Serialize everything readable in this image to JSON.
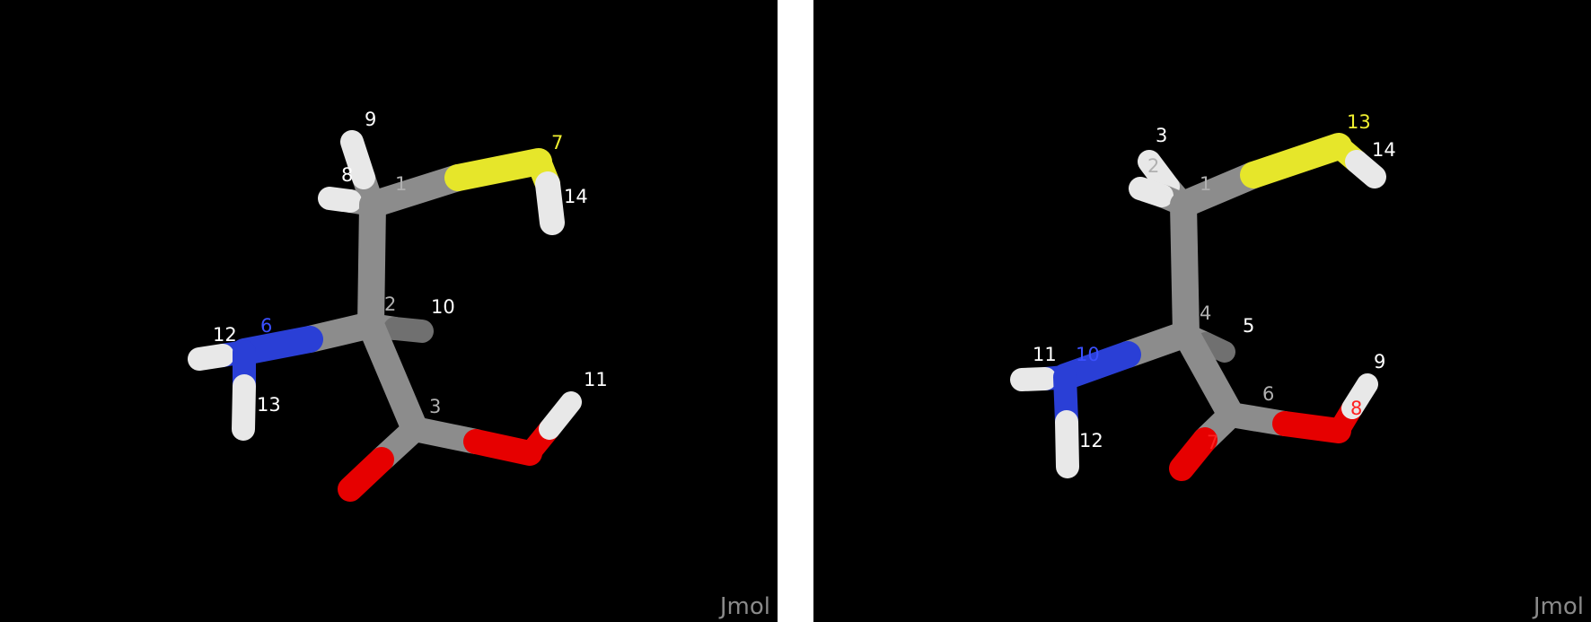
{
  "colors": {
    "background": "#000000",
    "carbon": "#8c8c8c",
    "hydrogen": "#e8e8e8",
    "nitrogen": "#2a3fd6",
    "oxygen": "#e60000",
    "sulfur": "#e6e62a",
    "label_default": "#ffffff",
    "label_carbon": "#b0b0b0",
    "label_nitrogen": "#3b50ff",
    "label_sulfur": "#f0f030",
    "label_oxygen": "#ff2020"
  },
  "viewer_watermark": "Jmol",
  "molecules": [
    {
      "atom_labels": [
        "1",
        "2",
        "3",
        "6",
        "7",
        "8",
        "9",
        "10",
        "11",
        "12",
        "13",
        "14"
      ]
    },
    {
      "atom_labels": [
        "1",
        "2",
        "3",
        "4",
        "5",
        "6",
        "7",
        "8",
        "9",
        "10",
        "11",
        "12",
        "13",
        "14"
      ]
    }
  ]
}
